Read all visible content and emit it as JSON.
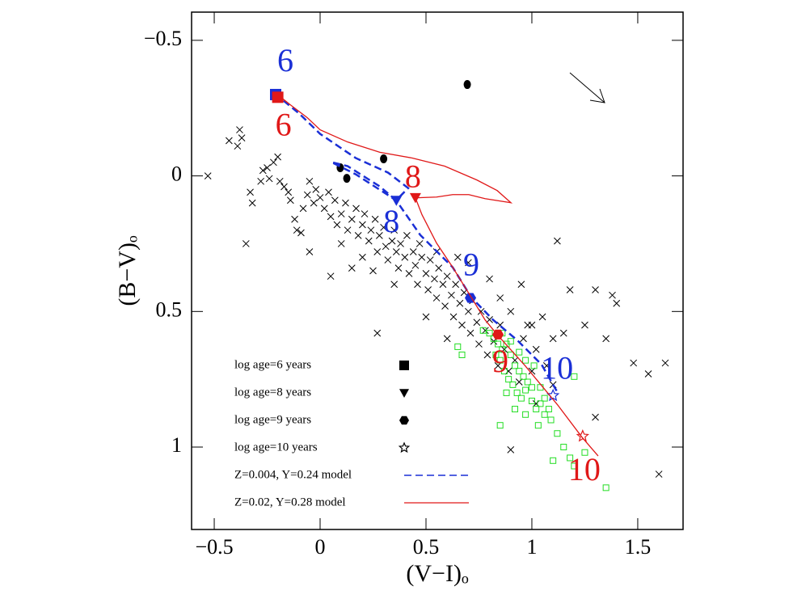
{
  "chart_data": {
    "type": "scatter",
    "x_label": "(V−I)ₒ",
    "y_label": "(B−V)ₒ",
    "xlim": [
      -0.607,
      1.714
    ],
    "ylim": [
      1.304,
      -0.604
    ],
    "xticks": [
      {
        "value": -0.5,
        "label": "−0.5"
      },
      0,
      0.5,
      1,
      1.5
    ],
    "yticks": [
      {
        "value": -0.5,
        "label": "−0.5"
      },
      0,
      0.5,
      1
    ],
    "observations": [
      {
        "marker": "x",
        "color": "#000000",
        "x": [
          -0.53,
          -0.43,
          -0.38,
          -0.37,
          -0.39,
          -0.33,
          -0.32,
          -0.28,
          -0.27,
          -0.25,
          -0.24,
          -0.22,
          -0.2,
          -0.19,
          -0.17,
          -0.15,
          -0.14,
          -0.12,
          -0.11,
          -0.09,
          -0.08,
          -0.06,
          -0.05,
          -0.03,
          -0.02,
          0,
          0.02,
          0.04,
          0.05,
          0.07,
          0.08,
          0.1,
          0.12,
          0.13,
          0.15,
          0.17,
          0.18,
          0.2,
          0.21,
          0.23,
          0.24,
          0.26,
          0.27,
          0.28,
          0.3,
          0.31,
          0.32,
          0.34,
          0.35,
          0.36,
          0.37,
          0.38,
          0.4,
          0.41,
          0.42,
          0.44,
          0.45,
          0.46,
          0.47,
          0.48,
          0.5,
          0.51,
          0.52,
          0.54,
          0.55,
          0.56,
          0.58,
          0.59,
          0.6,
          0.62,
          0.63,
          0.64,
          0.66,
          0.67,
          0.68,
          0.7,
          0.71,
          0.72,
          0.74,
          0.75,
          0.76,
          0.78,
          0.79,
          0.8,
          0.82,
          0.84,
          0.85,
          0.87,
          0.89,
          0.9,
          0.92,
          0.94,
          0.96,
          0.98,
          1,
          1.02,
          1.05,
          1.07,
          1.1,
          1.12,
          1.15,
          1.18,
          1.25,
          1.3,
          1.35,
          1.38,
          1.4,
          1.48,
          1.55,
          1.6,
          1.63,
          0.27,
          0.05,
          -0.35,
          1.3,
          0.9,
          1,
          0.95,
          0.65,
          0.55,
          0.35,
          0.2,
          0.1,
          -0.05,
          0.15,
          0.25,
          0.6,
          0.5,
          0.7,
          0.8,
          0.85,
          1.02,
          1.1
        ],
        "y": [
          0,
          -0.13,
          -0.17,
          -0.14,
          -0.11,
          0.06,
          0.1,
          0.02,
          -0.02,
          -0.03,
          0.01,
          -0.05,
          -0.07,
          0.02,
          0.04,
          0.06,
          0.09,
          0.16,
          0.2,
          0.21,
          0.12,
          0.07,
          0.02,
          0.1,
          0.05,
          0.08,
          0.12,
          0.06,
          0.15,
          0.09,
          0.18,
          0.14,
          0.1,
          0.2,
          0.16,
          0.12,
          0.22,
          0.18,
          0.14,
          0.24,
          0.2,
          0.16,
          0.28,
          0.22,
          0.19,
          0.26,
          0.31,
          0.24,
          0.2,
          0.28,
          0.34,
          0.25,
          0.3,
          0.22,
          0.36,
          0.28,
          0.33,
          0.4,
          0.25,
          0.3,
          0.36,
          0.42,
          0.31,
          0.38,
          0.45,
          0.34,
          0.4,
          0.48,
          0.37,
          0.44,
          0.52,
          0.4,
          0.47,
          0.55,
          0.43,
          0.5,
          0.58,
          0.46,
          0.54,
          0.62,
          0.5,
          0.57,
          0.66,
          0.53,
          0.61,
          0.7,
          0.55,
          0.64,
          0.72,
          0.5,
          0.68,
          0.76,
          0.6,
          0.55,
          0.72,
          0.64,
          0.52,
          0.7,
          0.6,
          0.24,
          0.58,
          0.42,
          0.55,
          0.42,
          0.6,
          0.44,
          0.47,
          0.69,
          0.73,
          1.1,
          0.69,
          0.58,
          0.37,
          0.25,
          0.89,
          1.01,
          0.55,
          0.4,
          0.3,
          0.28,
          0.4,
          0.3,
          0.25,
          0.28,
          0.34,
          0.35,
          0.6,
          0.52,
          0.32,
          0.38,
          0.45,
          0.84,
          0.77
        ]
      },
      {
        "marker": "square-open",
        "color": "#22dd22",
        "x": [
          0.77,
          0.8,
          0.82,
          0.84,
          0.86,
          0.88,
          0.9,
          0.92,
          0.94,
          0.96,
          0.98,
          1,
          0.85,
          0.87,
          0.89,
          0.91,
          0.93,
          0.95,
          0.97,
          1,
          1.02,
          1.04,
          1.06,
          1.08,
          0.83,
          0.86,
          0.9,
          0.88,
          0.92,
          0.85,
          0.97,
          1.03,
          1.09,
          1.12,
          1.15,
          1.18,
          1.1,
          1.25,
          1.35,
          1.2,
          0.65,
          0.67,
          1.2,
          0.97,
          1.04,
          0.94,
          1.01,
          1.06
        ],
        "y": [
          0.57,
          0.58,
          0.6,
          0.62,
          0.64,
          0.62,
          0.66,
          0.7,
          0.72,
          0.74,
          0.76,
          0.78,
          0.68,
          0.72,
          0.75,
          0.77,
          0.8,
          0.82,
          0.79,
          0.83,
          0.86,
          0.84,
          0.82,
          0.86,
          0.66,
          0.58,
          0.61,
          0.8,
          0.86,
          0.92,
          0.88,
          0.92,
          0.9,
          0.95,
          1,
          1.04,
          1.05,
          1.02,
          1.15,
          1.07,
          0.63,
          0.66,
          0.74,
          0.68,
          0.78,
          0.65,
          0.7,
          0.88
        ]
      },
      {
        "marker": "circle",
        "color": "#000000",
        "x": [
          0.695,
          0.3,
          0.095,
          0.126
        ],
        "y": [
          -0.337,
          -0.063,
          -0.03,
          0.009
        ]
      }
    ],
    "series": [
      {
        "name": "Z=0.004, Y=0.24 model",
        "color": "#1a2fd6",
        "dashed": true,
        "x": [
          -0.214,
          -0.099,
          0,
          0.168,
          0.321,
          0.416,
          0.359,
          0.282,
          0.13,
          0.053,
          0.168,
          0.359,
          0.473,
          0.626,
          0.714,
          0.817,
          0.931,
          1.046,
          1.122
        ],
        "y": [
          -0.304,
          -0.23,
          -0.155,
          -0.066,
          -0.012,
          0.045,
          0.09,
          0.039,
          -0.036,
          -0.051,
          -0.006,
          0.09,
          0.218,
          0.337,
          0.448,
          0.531,
          0.606,
          0.696,
          0.8
        ],
        "age_x": [
          -0.21,
          0.36,
          0.71,
          1.1
        ],
        "age_y": [
          -0.3,
          0.09,
          0.45,
          0.81
        ],
        "age_labels": [
          "6",
          "8",
          "9",
          "10"
        ]
      },
      {
        "name": "Z=0.02, Y=0.28 model",
        "color": "#e01818",
        "dashed": false,
        "x": [
          -0.195,
          -0.137,
          -0.061,
          0,
          0.13,
          0.282,
          0.435,
          0.588,
          0.74,
          0.836,
          0.901,
          0.779,
          0.702,
          0.626,
          0.55,
          0.45,
          0.481,
          0.55,
          0.626,
          0.714,
          0.779,
          0.836,
          0.969,
          1.122,
          1.237,
          1.313
        ],
        "y": [
          -0.296,
          -0.26,
          -0.215,
          -0.17,
          -0.125,
          -0.087,
          -0.066,
          -0.036,
          0.015,
          0.054,
          0.099,
          0.084,
          0.069,
          0.069,
          0.078,
          0.081,
          0.143,
          0.248,
          0.337,
          0.448,
          0.531,
          0.585,
          0.701,
          0.845,
          0.964,
          1.033
        ],
        "age_x": [
          -0.2,
          0.45,
          0.84,
          1.24
        ],
        "age_y": [
          -0.29,
          0.08,
          0.585,
          0.96
        ],
        "age_labels": [
          "6",
          "8",
          "9",
          "10"
        ]
      }
    ],
    "age_legend": [
      {
        "label": "log age=6 years",
        "symbol": "square"
      },
      {
        "label": "log age=8 years",
        "symbol": "triangle"
      },
      {
        "label": "log age=9 years",
        "symbol": "hexagon"
      },
      {
        "label": "log age=10 years",
        "symbol": "star"
      }
    ]
  }
}
